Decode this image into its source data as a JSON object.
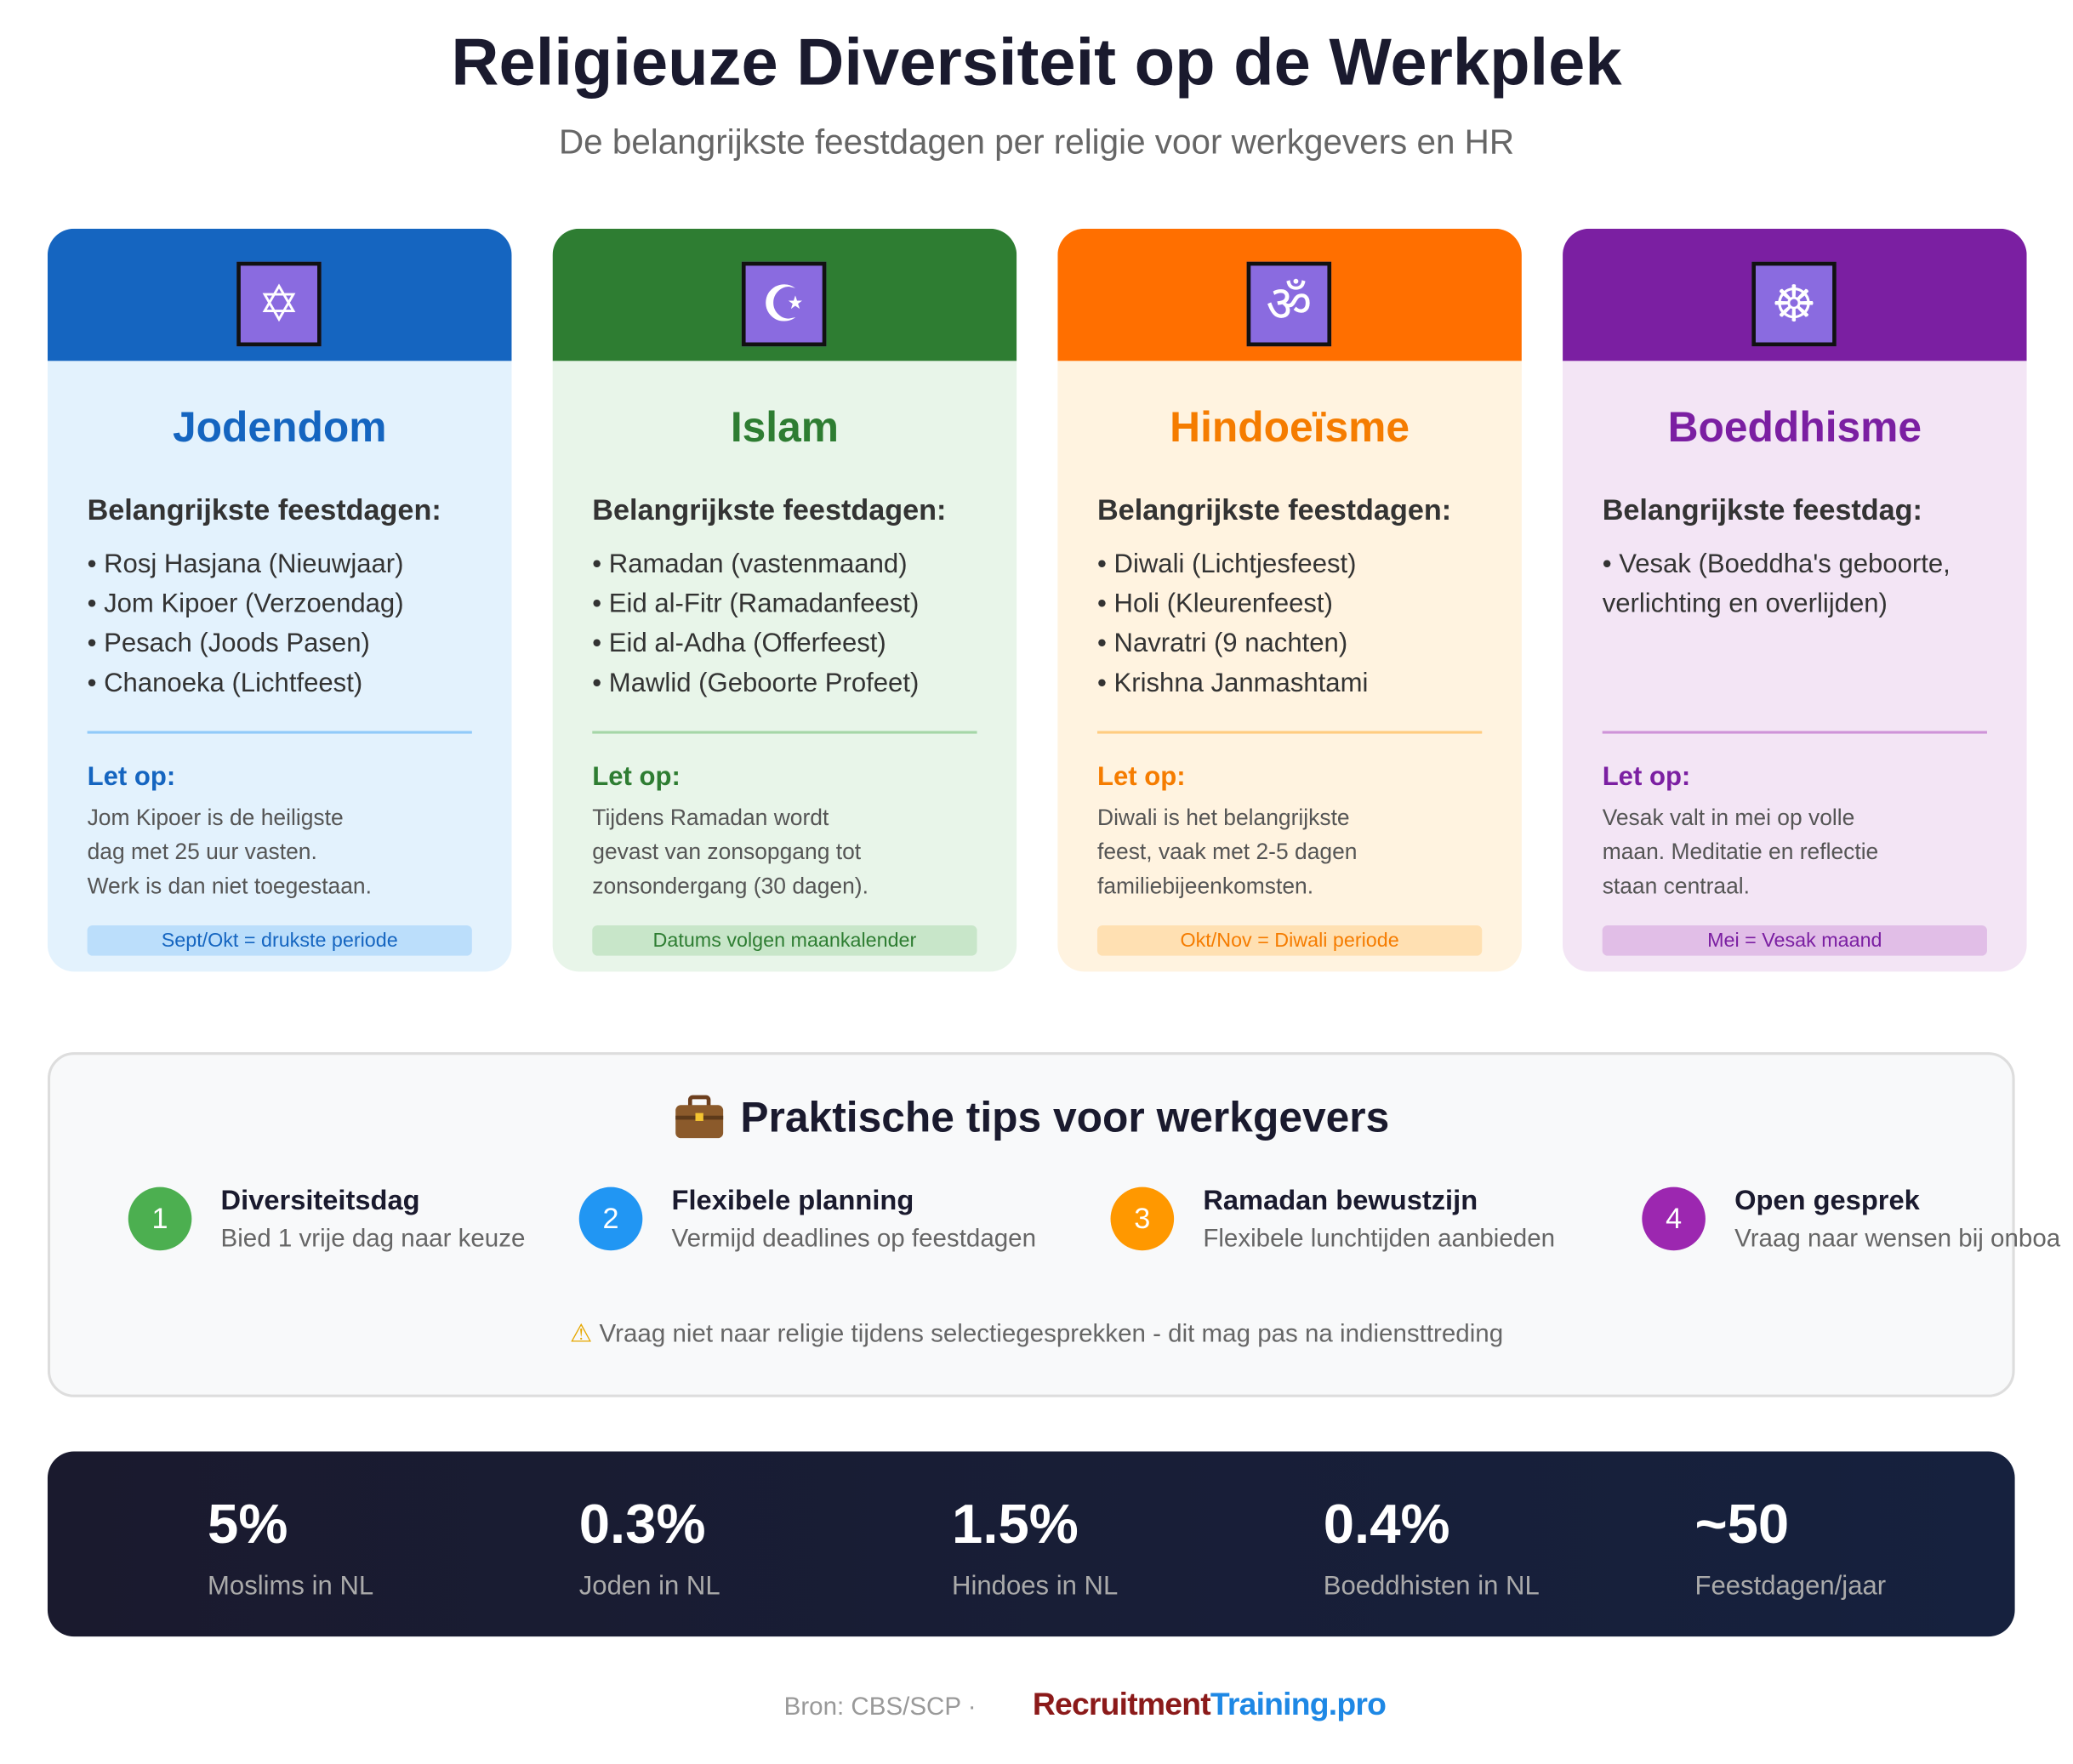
{
  "header": {
    "title": "Religieuze Diversiteit op de Werkplek",
    "subtitle": "De belangrijkste feestdagen per religie voor werkgevers en HR"
  },
  "cards": [
    {
      "name": "Jodendom",
      "heading": "Belangrijkste feestdagen:",
      "items": [
        "• Rosj Hasjana (Nieuwjaar)",
        "• Jom Kipoer (Verzoendag)",
        "• Pesach (Joods Pasen)",
        "• Chanoeka (Lichtfeest)"
      ],
      "note_title": "Let op:",
      "note": [
        "Jom Kipoer is de heiligste",
        "dag met 25 uur vasten.",
        "Werk is dan niet toegestaan."
      ],
      "badge": "Sept/Okt = drukste periode"
    },
    {
      "name": "Islam",
      "heading": "Belangrijkste feestdagen:",
      "items": [
        "• Ramadan (vastenmaand)",
        "• Eid al-Fitr (Ramadanfeest)",
        "• Eid al-Adha (Offerfeest)",
        "• Mawlid (Geboorte Profeet)"
      ],
      "note_title": "Let op:",
      "note": [
        "Tijdens Ramadan wordt",
        "gevast van zonsopgang tot",
        "zonsondergang (30 dagen)."
      ],
      "badge": "Datums volgen maankalender"
    },
    {
      "name": "Hindoeïsme",
      "heading": "Belangrijkste feestdagen:",
      "items": [
        "• Diwali (Lichtjesfeest)",
        "• Holi (Kleurenfeest)",
        "• Navratri (9 nachten)",
        "• Krishna Janmashtami"
      ],
      "note_title": "Let op:",
      "note": [
        "Diwali is het belangrijkste",
        "feest, vaak met 2-5 dagen",
        "familiebijeenkomsten."
      ],
      "badge": "Okt/Nov = Diwali periode"
    },
    {
      "name": "Boeddhisme",
      "heading": "Belangrijkste feestdag:",
      "items": [
        "• Vesak (Boeddha's geboorte,",
        "verlichting en overlijden)"
      ],
      "note_title": "Let op:",
      "note": [
        "Vesak valt in mei op volle",
        "maan. Meditatie en reflectie",
        "staan centraal."
      ],
      "badge": "Mei = Vesak maand"
    }
  ],
  "tips": {
    "title": "Praktische tips voor werkgevers",
    "items": [
      {
        "number": "1",
        "title": "Diversiteitsdag",
        "text": "Bied 1 vrije dag naar keuze"
      },
      {
        "number": "2",
        "title": "Flexibele planning",
        "text": "Vermijd deadlines op feestdagen"
      },
      {
        "number": "3",
        "title": "Ramadan bewustzijn",
        "text": "Flexibele lunchtijden aanbieden"
      },
      {
        "number": "4",
        "title": "Open gesprek",
        "text": "Vraag naar wensen bij onboa"
      }
    ],
    "warning": "Vraag niet naar religie tijdens selectiegesprekken - dit mag pas na indiensttreding"
  },
  "stats": [
    {
      "value": "5%",
      "label": "Moslims in NL"
    },
    {
      "value": "0.3%",
      "label": "Joden in NL"
    },
    {
      "value": "1.5%",
      "label": "Hindoes in NL"
    },
    {
      "value": "0.4%",
      "label": "Boeddhisten in NL"
    },
    {
      "value": "~50",
      "label": "Feestdagen/jaar"
    }
  ],
  "footer": {
    "source": "Bron: CBS/SCP ·",
    "logo_a": "Recruitment",
    "logo_b": "Training.pro"
  }
}
